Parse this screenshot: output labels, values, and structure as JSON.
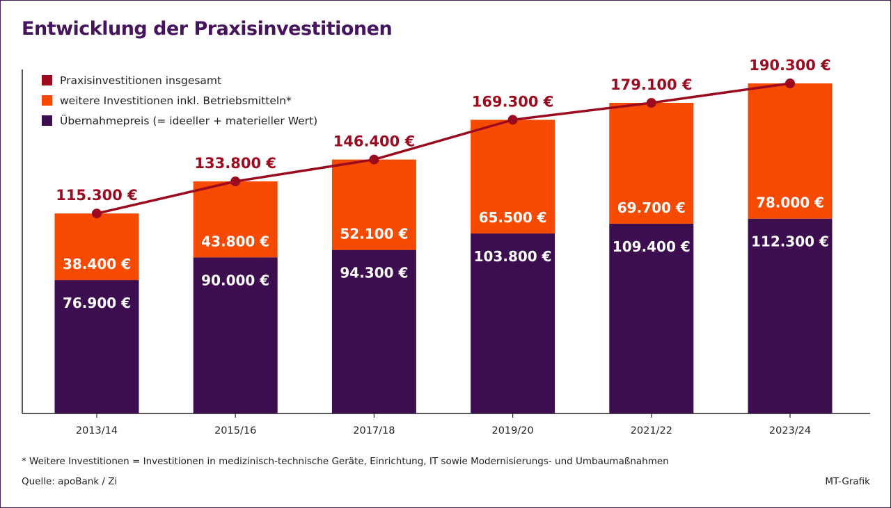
{
  "title": "Entwicklung der Praxisinvestitionen",
  "colors": {
    "total": "#9b0a1e",
    "other": "#f54a00",
    "purchase": "#3c0e4f",
    "title": "#45145c"
  },
  "legend": [
    {
      "label": "Praxisinvestitionen insgesamt",
      "color": "#9b0a1e"
    },
    {
      "label": "weitere Investitionen inkl. Betriebsmitteln*",
      "color": "#f54a00"
    },
    {
      "label": "Übernahmepreis (= ideeller + materieller Wert)",
      "color": "#3c0e4f"
    }
  ],
  "chart_data": {
    "type": "bar",
    "stacked": true,
    "title": "Entwicklung der Praxisinvestitionen",
    "categories": [
      "2013/14",
      "2015/16",
      "2017/18",
      "2019/20",
      "2021/22",
      "2023/24"
    ],
    "series": [
      {
        "name": "Übernahmepreis (= ideeller + materieller Wert)",
        "values": [
          76900,
          90000,
          94300,
          103800,
          109400,
          112300
        ],
        "labels": [
          "76.900 €",
          "90.000 €",
          "94.300 €",
          "103.800 €",
          "109.400 €",
          "112.300 €"
        ]
      },
      {
        "name": "weitere Investitionen inkl. Betriebsmitteln*",
        "values": [
          38400,
          43800,
          52100,
          65500,
          69700,
          78000
        ],
        "labels": [
          "38.400 €",
          "43.800 €",
          "52.100 €",
          "65.500 €",
          "69.700 €",
          "78.000 €"
        ]
      },
      {
        "name": "Praxisinvestitionen insgesamt",
        "type": "line",
        "values": [
          115300,
          133800,
          146400,
          169300,
          179100,
          190300
        ],
        "labels": [
          "115.300 €",
          "133.800 €",
          "146.400 €",
          "169.300 €",
          "179.100 €",
          "190.300 €"
        ]
      }
    ],
    "ylim": [
      0,
      190300
    ],
    "xlabel": "",
    "ylabel": "",
    "legend": "top-left"
  },
  "footnote": "* Weitere Investitionen = Investitionen in medizinisch-technische Geräte, Einrichtung, IT sowie Modernisierungs- und Umbaumaßnahmen",
  "source": "Quelle: apoBank / Zi",
  "credit": "MT-Grafik"
}
